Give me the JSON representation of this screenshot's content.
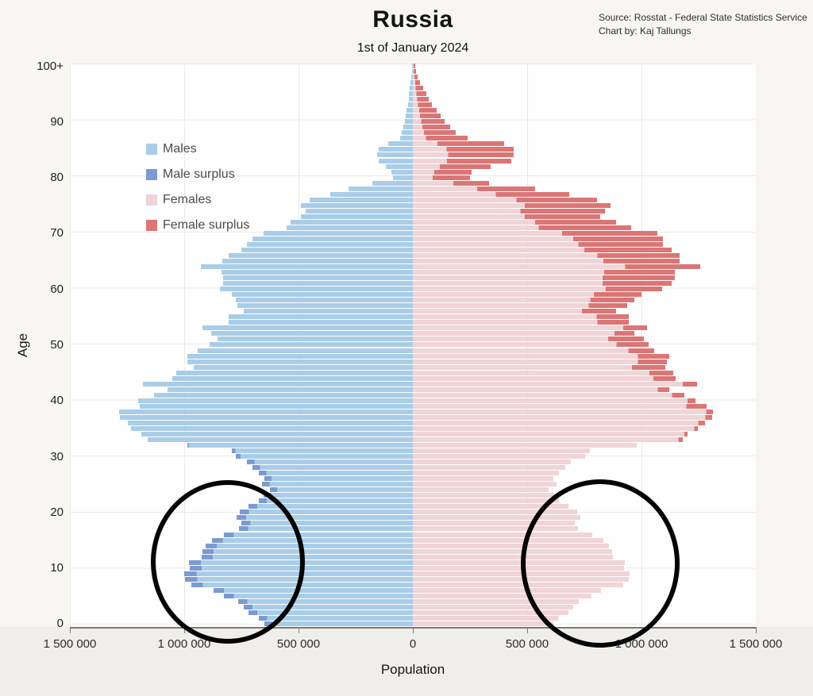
{
  "header": {
    "title": "Russia",
    "subtitle": "1st of January 2024",
    "source_line1": "Source: Rosstat - Federal State Statistics Service",
    "source_line2": "Chart by: Kaj Tallungs"
  },
  "colors": {
    "males": "#a9cde8",
    "male_surplus": "#7b9ad2",
    "females": "#f0d4d6",
    "female_surplus": "#dc7575",
    "annotation_circle": "#050505",
    "background": "#f8f6f3",
    "plot_background": "#fefefe"
  },
  "legend": {
    "items": [
      {
        "label": "Males",
        "color_key": "males"
      },
      {
        "label": "Male surplus",
        "color_key": "male_surplus"
      },
      {
        "label": "Females",
        "color_key": "females"
      },
      {
        "label": "Female surplus",
        "color_key": "female_surplus"
      }
    ]
  },
  "chart_data": {
    "type": "bar",
    "variant": "population-pyramid",
    "title": "Russia",
    "subtitle": "1st of January 2024",
    "xlabel": "Population",
    "ylabel": "Age",
    "x_axis": {
      "tick_labels": [
        "1 500 000",
        "1 000 000",
        "500 000",
        "0",
        "500 000",
        "1 000 000",
        "1 500 000"
      ],
      "tick_values": [
        -1500000,
        -1000000,
        -500000,
        0,
        500000,
        1000000,
        1500000
      ],
      "max_per_side": 1500000,
      "grid": true
    },
    "y_axis": {
      "tick_labels": [
        "0",
        "10",
        "20",
        "30",
        "40",
        "50",
        "60",
        "70",
        "80",
        "90",
        "100+"
      ],
      "tick_ages": [
        0,
        10,
        20,
        30,
        40,
        50,
        60,
        70,
        80,
        90,
        100
      ],
      "age_min": 0,
      "age_max": 100,
      "grid": true
    },
    "unit": "persons",
    "ages_note": "index = single year of age, 0 through 100 (100 = 100+)",
    "series": [
      {
        "name": "Males",
        "values": [
          650000,
          672000,
          718000,
          740000,
          765000,
          825000,
          870000,
          970000,
          996000,
          1000000,
          975000,
          978000,
          925000,
          920000,
          905000,
          880000,
          828000,
          762000,
          750000,
          772000,
          758000,
          718000,
          675000,
          652000,
          625000,
          660000,
          648000,
          672000,
          700000,
          724000,
          775000,
          790000,
          986000,
          1161000,
          1187000,
          1231000,
          1248000,
          1280000,
          1283000,
          1196000,
          1202000,
          1133000,
          1072000,
          1180000,
          1052000,
          1035000,
          958000,
          985000,
          985000,
          942000,
          890000,
          855000,
          882000,
          920000,
          807000,
          804000,
          739000,
          769000,
          776000,
          792000,
          844000,
          830000,
          830000,
          837000,
          928000,
          834000,
          807000,
          750000,
          724000,
          702000,
          653000,
          551000,
          535000,
          490000,
          470000,
          490000,
          453000,
          362000,
          281000,
          177000,
          87000,
          93000,
          118000,
          150000,
          155000,
          148000,
          108000,
          57000,
          49000,
          42000,
          36000,
          31000,
          27000,
          22000,
          19000,
          16000,
          13000,
          10000,
          7000,
          4000,
          3000
        ]
      },
      {
        "name": "Females",
        "values": [
          615000,
          636000,
          680000,
          701000,
          725000,
          782000,
          824000,
          919000,
          943000,
          947000,
          923000,
          926000,
          876000,
          871000,
          857000,
          833000,
          784000,
          722000,
          710000,
          731000,
          718000,
          680000,
          640000,
          618000,
          593000,
          627000,
          616000,
          639000,
          667000,
          691000,
          755000,
          775000,
          980000,
          1182000,
          1203000,
          1245000,
          1278000,
          1308000,
          1313000,
          1283000,
          1235000,
          1187000,
          1122000,
          1244000,
          1148000,
          1140000,
          1105000,
          1110000,
          1122000,
          1056000,
          1031000,
          1012000,
          970000,
          1023000,
          943000,
          943000,
          888000,
          937000,
          970000,
          1000000,
          1090000,
          1132000,
          1147000,
          1147000,
          1256000,
          1166000,
          1166000,
          1132000,
          1093000,
          1093000,
          1068000,
          955000,
          890000,
          820000,
          840000,
          865000,
          805000,
          684000,
          533000,
          335000,
          251000,
          258000,
          340000,
          430000,
          440000,
          442000,
          400000,
          240000,
          187000,
          162000,
          139000,
          121000,
          104000,
          83000,
          69000,
          60000,
          44000,
          31000,
          21000,
          14000,
          12000
        ]
      }
    ],
    "surplus_rule": "male surplus segment = males - females when positive; female surplus segment = females - males when positive",
    "legend_entries": [
      "Males",
      "Male surplus",
      "Females",
      "Female surplus"
    ],
    "legend_position": "upper-left inside plot",
    "annotations": [
      {
        "shape": "ellipse",
        "note": "highlights male-surplus zig-zag edge, ages ~0-25, left side"
      },
      {
        "shape": "ellipse",
        "note": "highlights female bar edge hump, ages ~0-25, right side"
      }
    ]
  }
}
